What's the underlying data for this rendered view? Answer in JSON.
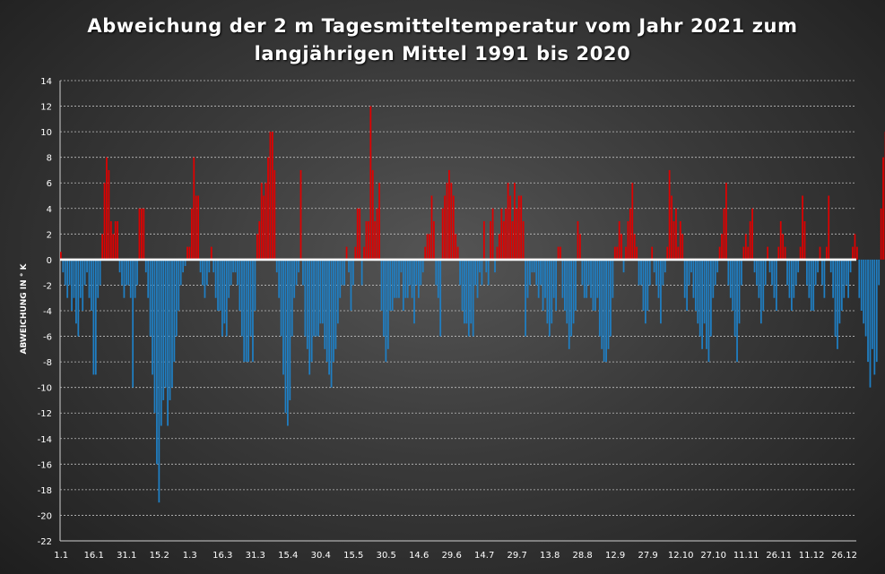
{
  "chart_data": {
    "type": "bar",
    "title": "Abweichung der 2 m Tagesmitteltemperatur  vom Jahr 2021 zum\nlangjährigen Mittel 1991 bis 2020",
    "xlabel": "",
    "ylabel": "ABWEICHUNG IN ° K",
    "ylim": [
      -22,
      14
    ],
    "yticks": [
      14,
      12,
      10,
      8,
      6,
      4,
      2,
      0,
      -2,
      -4,
      -6,
      -8,
      -10,
      -12,
      -14,
      -16,
      -18,
      -20,
      -22
    ],
    "x_tick_labels": [
      {
        "day": 1,
        "label": "1.1"
      },
      {
        "day": 16,
        "label": "16.1"
      },
      {
        "day": 31,
        "label": "31.1"
      },
      {
        "day": 46,
        "label": "15.2"
      },
      {
        "day": 60,
        "label": "1.3"
      },
      {
        "day": 75,
        "label": "16.3"
      },
      {
        "day": 90,
        "label": "31.3"
      },
      {
        "day": 105,
        "label": "15.4"
      },
      {
        "day": 120,
        "label": "30.4"
      },
      {
        "day": 135,
        "label": "15.5"
      },
      {
        "day": 150,
        "label": "30.5"
      },
      {
        "day": 165,
        "label": "14.6"
      },
      {
        "day": 180,
        "label": "29.6"
      },
      {
        "day": 195,
        "label": "14.7"
      },
      {
        "day": 210,
        "label": "29.7"
      },
      {
        "day": 225,
        "label": "13.8"
      },
      {
        "day": 240,
        "label": "28.8"
      },
      {
        "day": 255,
        "label": "12.9"
      },
      {
        "day": 270,
        "label": "27.9"
      },
      {
        "day": 285,
        "label": "12.10"
      },
      {
        "day": 300,
        "label": "27.10"
      },
      {
        "day": 315,
        "label": "11.11"
      },
      {
        "day": 330,
        "label": "26.11"
      },
      {
        "day": 345,
        "label": "11.12"
      },
      {
        "day": 360,
        "label": "26.12"
      }
    ],
    "grid": true,
    "legend": "none",
    "colors": {
      "positive": "#e00000",
      "negative": "#1f7fc4",
      "zero_line": "#ffffff",
      "grid": "#bfbfbf"
    },
    "values": [
      0.6,
      -1,
      -2,
      -3,
      -2,
      -4,
      -3,
      -5,
      -6,
      -3,
      -4,
      -2,
      -1,
      -3,
      -4,
      -9,
      -9,
      -3,
      -2,
      2,
      6,
      8,
      7,
      3,
      2,
      3,
      3,
      -1,
      -2,
      -3,
      -2,
      -2,
      -3,
      -10,
      -3,
      -2,
      4,
      4,
      4,
      -1,
      -3,
      -6,
      -9,
      -12,
      -16,
      -19,
      -13,
      -11,
      -10,
      -13,
      -11,
      -10,
      -8,
      -6,
      -4,
      -2,
      -1,
      -0.5,
      1,
      1,
      4,
      8,
      5,
      5,
      -1,
      -2,
      -3,
      -2,
      -1,
      1,
      -1,
      -3,
      -4,
      -4,
      -6,
      -5,
      -6,
      -3,
      -2,
      -1,
      -1,
      -2,
      -4,
      -6,
      -8,
      -8,
      -8,
      -6,
      -8,
      -4,
      2,
      3,
      6,
      5,
      6,
      8,
      10,
      10,
      7,
      -1,
      -3,
      -6,
      -9,
      -12,
      -13,
      -11,
      -6,
      -3,
      -2,
      -1,
      7,
      -2,
      -6,
      -7,
      -9,
      -8,
      -6,
      -6,
      -6,
      -5,
      -5,
      -7,
      -8,
      -9,
      -10,
      -8,
      -7,
      -5,
      -3,
      -2,
      -2,
      1,
      -1,
      -4,
      -2,
      1,
      4,
      4,
      -2,
      1,
      3,
      3,
      12,
      7,
      3,
      4,
      6,
      -4,
      -6,
      -8,
      -7,
      -4,
      -4,
      -3,
      -3,
      -3,
      -1,
      -4,
      -3,
      -3,
      -2,
      -3,
      -5,
      -2,
      -3,
      -2,
      -1,
      1,
      2,
      2,
      5,
      3,
      -2,
      -3,
      -6,
      4,
      5,
      6,
      7,
      6,
      5,
      2,
      1,
      -2,
      -4,
      -5,
      -5,
      -6,
      -5,
      -6,
      -2,
      -3,
      -1,
      -2,
      3,
      -1,
      -2,
      3,
      4,
      -1,
      1,
      2,
      4,
      3,
      4,
      6,
      5,
      3,
      6,
      4,
      5,
      5,
      3,
      -6,
      -3,
      -2,
      -1,
      -1,
      -2,
      -3,
      -2,
      -4,
      -3,
      -5,
      -6,
      -5,
      -3,
      -4,
      1,
      1,
      -3,
      -4,
      -5,
      -7,
      -6,
      -5,
      -4,
      3,
      2,
      -2,
      -3,
      -3,
      -2,
      -3,
      -4,
      -4,
      -3,
      -6,
      -7,
      -8,
      -8,
      -7,
      -6,
      -3,
      1,
      1,
      3,
      2,
      -1,
      1,
      3,
      4,
      6,
      2,
      1,
      -2,
      -2,
      -4,
      -5,
      -4,
      -2,
      1,
      -1,
      -2,
      -3,
      -5,
      -2,
      -1,
      1,
      7,
      5,
      3,
      4,
      1,
      3,
      2,
      -3,
      -4,
      -2,
      -1,
      -3,
      -4,
      -5,
      -6,
      -7,
      -5,
      -7,
      -8,
      -6,
      -3,
      -2,
      -1,
      1,
      2,
      4,
      6,
      -2,
      -3,
      -4,
      -6,
      -8,
      -5,
      -2,
      1,
      2,
      1,
      3,
      4,
      -1,
      -2,
      -3,
      -5,
      -4,
      -2,
      1,
      -1,
      -2,
      -3,
      -4,
      1,
      3,
      2,
      1,
      -2,
      -3,
      -4,
      -3,
      -2,
      -1,
      1,
      5,
      3,
      -2,
      -3,
      -4,
      -4,
      -2,
      -1,
      1,
      -2,
      -3,
      1,
      5,
      -1,
      -3,
      -6,
      -7,
      -5,
      -4,
      -3,
      -2,
      -3,
      -1,
      1,
      2,
      1,
      -3,
      -4,
      -5,
      -6,
      -8,
      -10,
      -7,
      -9,
      -8,
      -2,
      4,
      8,
      10
    ]
  }
}
